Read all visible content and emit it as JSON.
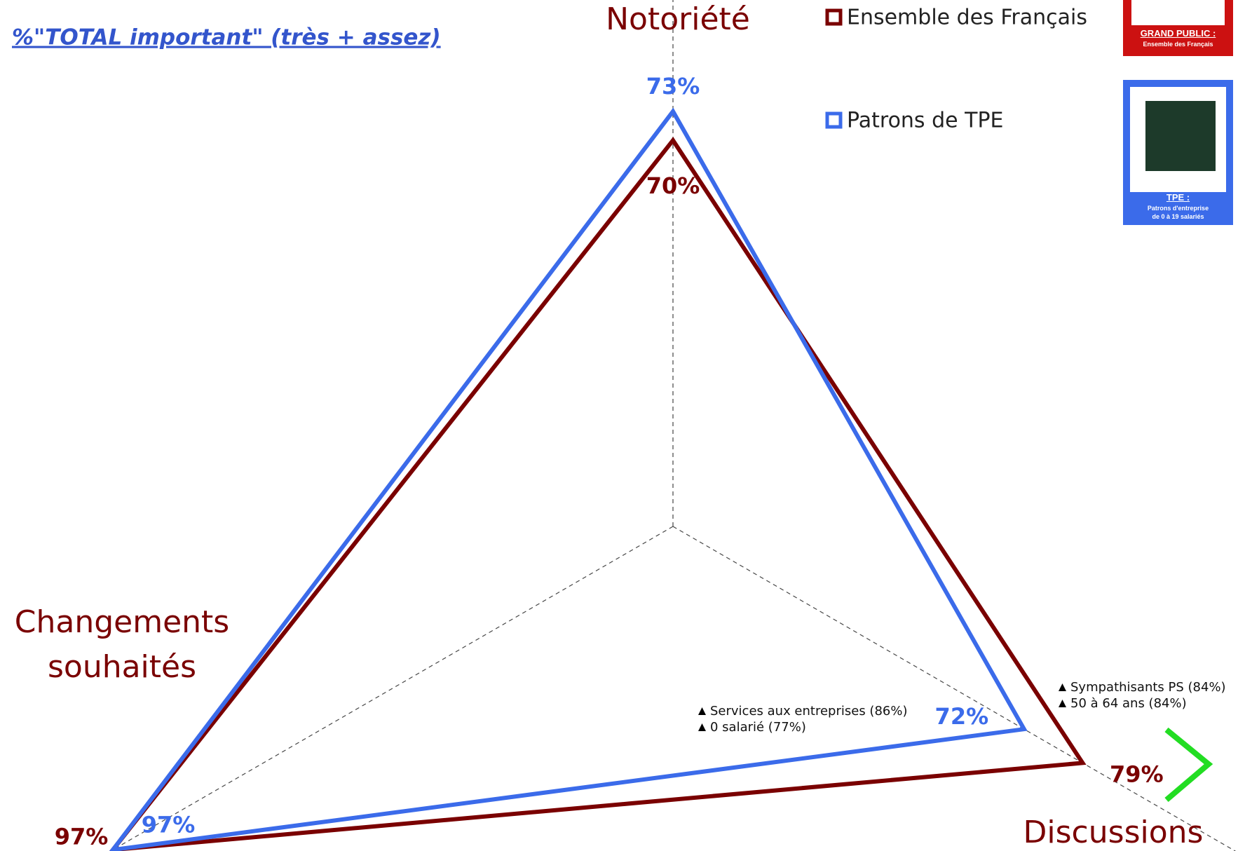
{
  "chart_data": {
    "type": "radar",
    "title": "%\"TOTAL important\" (très + assez)",
    "categories": [
      "Notoriété",
      "Discussions",
      "Changements souhaités"
    ],
    "rlim": [
      30,
      100
    ],
    "series": [
      {
        "name": "Ensemble des Français",
        "color": "#7a0000",
        "values": [
          70,
          79,
          97
        ],
        "value_labels": [
          "70%",
          "79%",
          "97%"
        ]
      },
      {
        "name": "Patrons de TPE",
        "color": "#3b6bea",
        "values": [
          73,
          72,
          97
        ],
        "value_labels": [
          "73%",
          "72%",
          "97%"
        ]
      }
    ],
    "annotations": [
      [
        "Services aux entreprises (86%)",
        "0 salarié (77%)"
      ],
      [
        "Sympathisants PS (84%)",
        "50 à 64 ans (84%)"
      ]
    ]
  },
  "badges": [
    {
      "title": "GRAND PUBLIC :",
      "lines": [
        "Ensemble des Français"
      ]
    },
    {
      "title": "TPE :",
      "lines": [
        "Patrons d'entreprise",
        "de 0 à 19 salariés"
      ]
    }
  ]
}
